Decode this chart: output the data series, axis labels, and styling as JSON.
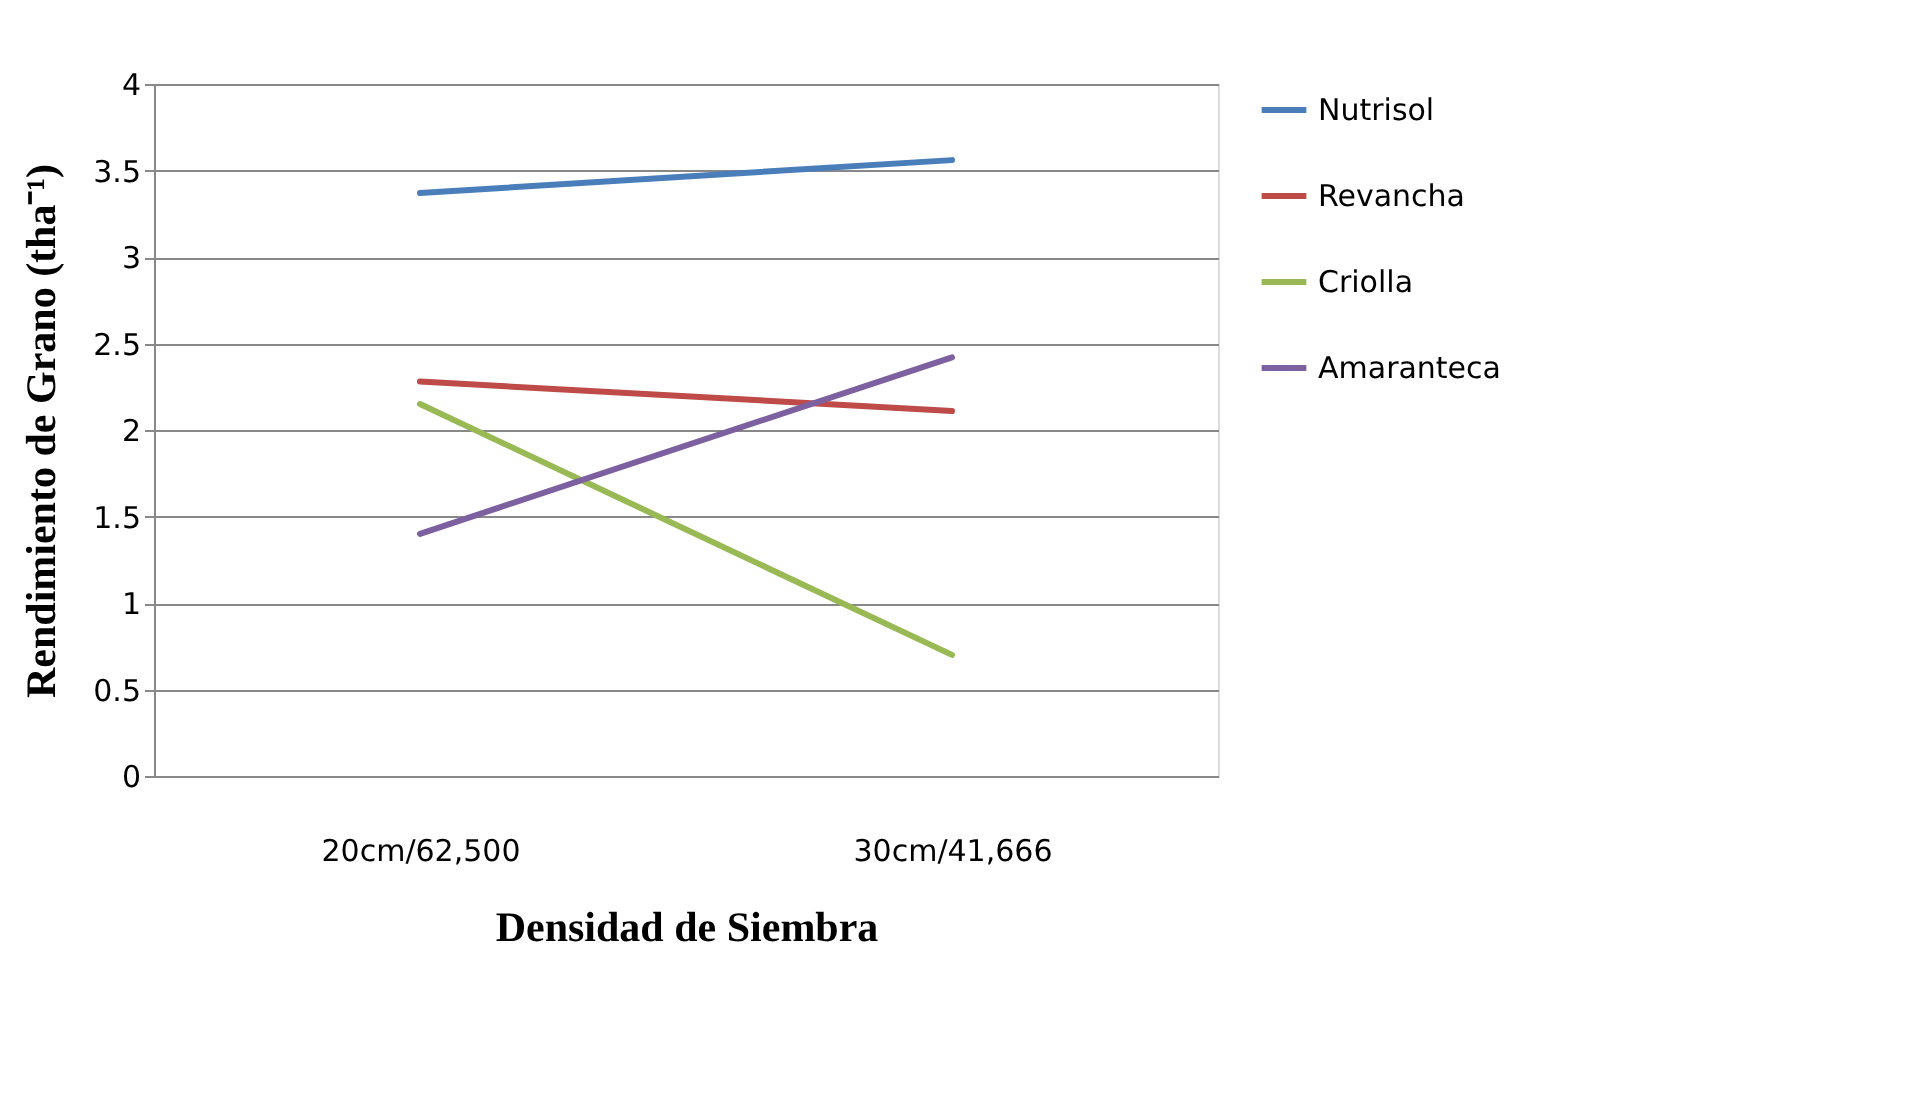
{
  "chart_data": {
    "type": "line",
    "xlabel": "Densidad de Siembra",
    "ylabel": "Rendimiento de Grano (tha⁻¹)",
    "categories": [
      "20cm/62,500",
      "30cm/41,666"
    ],
    "series": [
      {
        "name": "Nutrisol",
        "color": "#4a7ebb",
        "values": [
          3.37,
          3.56
        ]
      },
      {
        "name": "Revancha",
        "color": "#be4b48",
        "values": [
          2.28,
          2.11
        ]
      },
      {
        "name": "Criolla",
        "color": "#98b954",
        "values": [
          2.15,
          0.7
        ]
      },
      {
        "name": "Amaranteca",
        "color": "#7d60a0",
        "values": [
          1.4,
          2.42
        ]
      }
    ],
    "ylim": [
      0,
      4
    ],
    "yticks": [
      0,
      0.5,
      1,
      1.5,
      2,
      2.5,
      3,
      3.5,
      4
    ],
    "grid": "y",
    "legend": "right",
    "marker": "none",
    "line_style": "solid"
  }
}
